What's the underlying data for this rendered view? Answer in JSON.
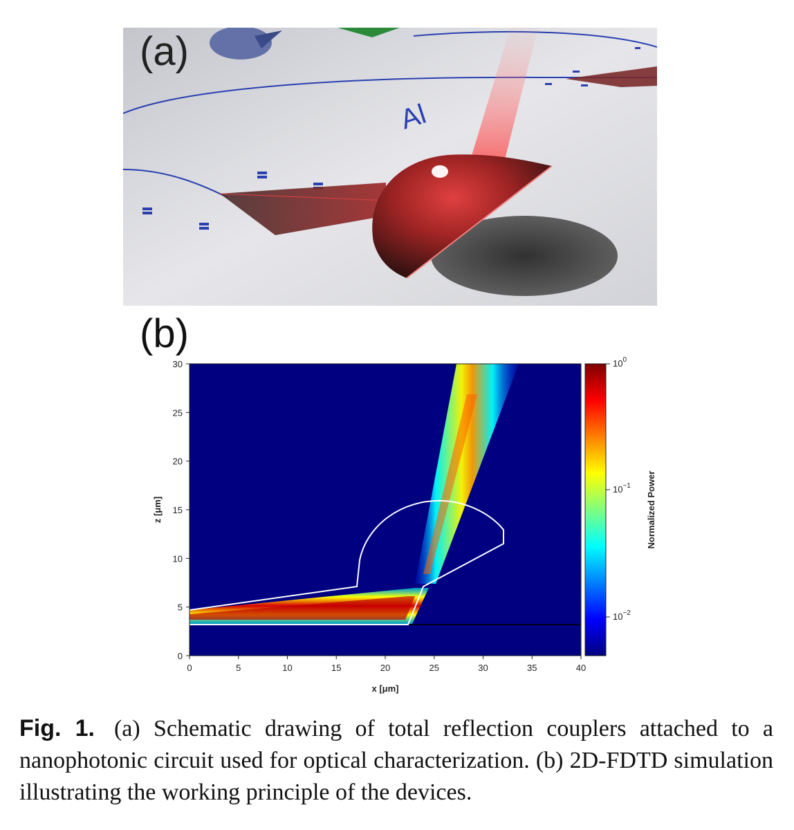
{
  "panel_a": {
    "label": "(a)",
    "text_on_surface": "Al"
  },
  "panel_b": {
    "label": "(b)"
  },
  "chart_data": {
    "type": "heatmap",
    "xlabel": "x [μm]",
    "ylabel": "z [μm]",
    "xlim": [
      0,
      40
    ],
    "ylim": [
      0,
      30
    ],
    "x_ticks": [
      "0",
      "5",
      "10",
      "15",
      "20",
      "25",
      "30",
      "35",
      "40"
    ],
    "y_ticks": [
      "0",
      "5",
      "10",
      "15",
      "20",
      "25",
      "30"
    ],
    "colorbar": {
      "label": "Normalized Power",
      "scale": "log",
      "ticks": [
        {
          "base": "10",
          "exp": "0"
        },
        {
          "base": "10",
          "exp": "−1"
        },
        {
          "base": "10",
          "exp": "−2"
        }
      ]
    }
  },
  "caption": {
    "figure_label": "Fig. 1.",
    "text": "(a) Schematic drawing of total reflection couplers attached to a nanophotonic circuit used for optical characterization. (b) 2D-FDTD simulation illustrating the working principle of the devices."
  }
}
